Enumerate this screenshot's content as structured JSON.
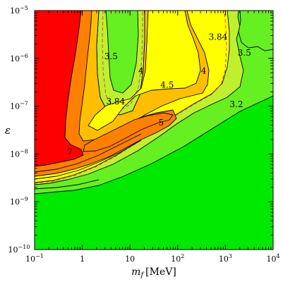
{
  "chart_data": {
    "type": "contour",
    "xlabel_var": "m",
    "xlabel_sub": "f",
    "xlabel_unit": "[MeV]",
    "ylabel": "ε",
    "xscale": "log",
    "yscale": "log",
    "xlim": [
      0.1,
      10000
    ],
    "ylim": [
      1e-10,
      1e-05
    ],
    "x_ticks": [
      0.1,
      1,
      10,
      100,
      1000,
      10000
    ],
    "x_tick_labels": [
      {
        "base": "10",
        "exp": "−1"
      },
      {
        "base": "1",
        "exp": ""
      },
      {
        "base": "10",
        "exp": ""
      },
      {
        "base": "10",
        "exp": "2"
      },
      {
        "base": "10",
        "exp": "3"
      },
      {
        "base": "10",
        "exp": "4"
      }
    ],
    "y_ticks": [
      1e-10,
      1e-09,
      1e-08,
      1e-07,
      1e-06,
      1e-05
    ],
    "y_tick_labels": [
      {
        "base": "10",
        "exp": "−10"
      },
      {
        "base": "10",
        "exp": "−9"
      },
      {
        "base": "10",
        "exp": "−8"
      },
      {
        "base": "10",
        "exp": "−7"
      },
      {
        "base": "10",
        "exp": "−6"
      },
      {
        "base": "10",
        "exp": "−5"
      }
    ],
    "levels": [
      {
        "value": "3.2",
        "fill": "#00e900"
      },
      {
        "value": "3.5",
        "fill": "#66f021"
      },
      {
        "value": "3.84",
        "fill": "#bff02e"
      },
      {
        "value": "4",
        "fill": "#ffff00"
      },
      {
        "value": "4.5",
        "fill": "#ffbf00"
      },
      {
        "value": "5",
        "fill": "#ff8000"
      },
      {
        "value": "7",
        "fill": "#ff0000"
      }
    ],
    "contour_labels": [
      {
        "text": "3.5",
        "x": 4.0,
        "y": 1.1e-06
      },
      {
        "text": "4",
        "x": 17,
        "y": 5.5e-07
      },
      {
        "text": "3.84",
        "x": 700,
        "y": 2.8e-06
      },
      {
        "text": "3.5",
        "x": 2500,
        "y": 1.3e-06
      },
      {
        "text": "4",
        "x": 350,
        "y": 5.5e-07
      },
      {
        "text": "4.5",
        "x": 60,
        "y": 2.8e-07
      },
      {
        "text": "3.84",
        "x": 5.0,
        "y": 1.25e-07
      },
      {
        "text": "5",
        "x": 45,
        "y": 4.5e-08
      },
      {
        "text": "3.2",
        "x": 1700,
        "y": 1.1e-07
      },
      {
        "text": "7",
        "x": 0.55,
        "y": 1.1e-08
      }
    ],
    "dashed_contour_value": "3.84"
  }
}
